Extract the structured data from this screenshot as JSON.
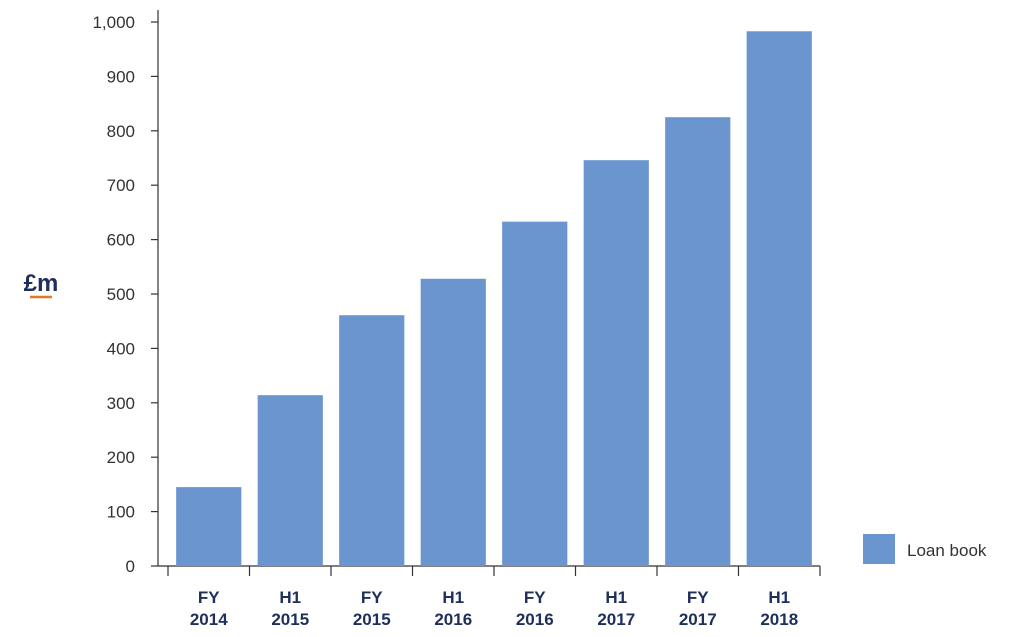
{
  "chart_data": {
    "type": "bar",
    "categories": [
      [
        "FY",
        "2014"
      ],
      [
        "H1",
        "2015"
      ],
      [
        "FY",
        "2015"
      ],
      [
        "H1",
        "2016"
      ],
      [
        "FY",
        "2016"
      ],
      [
        "H1",
        "2017"
      ],
      [
        "FY",
        "2017"
      ],
      [
        "H1",
        "2018"
      ]
    ],
    "series": [
      {
        "name": "Loan book",
        "values": [
          145,
          314,
          461,
          528,
          633,
          746,
          825,
          983
        ]
      }
    ],
    "ylabel": "£m",
    "ylim": [
      0,
      1000
    ],
    "yticks": [
      "0",
      "100",
      "200",
      "300",
      "400",
      "500",
      "600",
      "700",
      "800",
      "900",
      "1,000"
    ],
    "grid": false,
    "legend_position": "bottom-right",
    "colors": {
      "bar": "#6b95cf",
      "axis": "#333333",
      "label": "#1f2f5c",
      "accent": "#e87722"
    }
  }
}
